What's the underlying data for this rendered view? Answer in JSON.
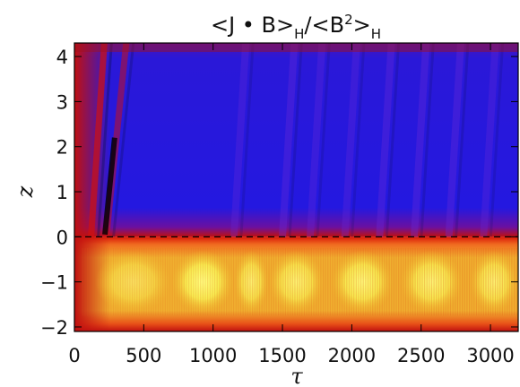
{
  "chart_data": {
    "type": "heatmap",
    "title": {
      "parts": [
        "<J • B>",
        "H",
        "/<B",
        "2",
        ">",
        "H"
      ]
    },
    "xlabel": "τ",
    "ylabel": "z",
    "xlim": [
      0,
      3200
    ],
    "ylim": [
      -2.1,
      4.3
    ],
    "x_ticks": [
      0,
      500,
      1000,
      1500,
      2000,
      2500,
      3000
    ],
    "x_tick_labels": [
      "0",
      "500",
      "1000",
      "1500",
      "2000",
      "2500",
      "3000"
    ],
    "y_ticks": [
      -2,
      -1,
      0,
      1,
      2,
      3,
      4
    ],
    "y_tick_labels": [
      "−2",
      "−1",
      "0",
      "1",
      "2",
      "3",
      "4"
    ],
    "reference_line": {
      "y": 0,
      "style": "dashed"
    },
    "colormap": [
      "#1a10d8",
      "#2820e0",
      "#000000",
      "#c01010",
      "#e02810",
      "#f06a20",
      "#f0c020",
      "#f0f070"
    ],
    "regions": [
      {
        "name": "upper",
        "z_range": [
          0,
          4.3
        ],
        "dominant": "negative",
        "color": "#2818e0"
      },
      {
        "name": "lower",
        "z_range": [
          -2.1,
          0
        ],
        "dominant": "positive",
        "color": "#f0e030"
      }
    ],
    "positive_bursts": [
      {
        "x_range": [
          150,
          700
        ],
        "level": 0.6
      },
      {
        "x_range": [
          700,
          1150
        ],
        "level": 1.0
      },
      {
        "x_range": [
          1150,
          1400
        ],
        "level": 0.8
      },
      {
        "x_range": [
          1400,
          1800
        ],
        "level": 0.85
      },
      {
        "x_range": [
          1850,
          2300
        ],
        "level": 0.95
      },
      {
        "x_range": [
          2350,
          2800
        ],
        "level": 0.9
      },
      {
        "x_range": [
          2850,
          3200
        ],
        "level": 0.85
      }
    ],
    "upward_streaks": [
      {
        "x_start": 120,
        "slope": 0.045,
        "strength": 0.7
      },
      {
        "x_start": 230,
        "slope": 0.03,
        "strength": 0.5
      },
      {
        "x_start": 1150,
        "slope": 0.05,
        "strength": 0.3
      },
      {
        "x_start": 1500,
        "slope": 0.05,
        "strength": 0.35
      },
      {
        "x_start": 1700,
        "slope": 0.05,
        "strength": 0.3
      },
      {
        "x_start": 1950,
        "slope": 0.05,
        "strength": 0.3
      },
      {
        "x_start": 2200,
        "slope": 0.05,
        "strength": 0.35
      },
      {
        "x_start": 2450,
        "slope": 0.05,
        "strength": 0.35
      },
      {
        "x_start": 2700,
        "slope": 0.05,
        "strength": 0.35
      },
      {
        "x_start": 2950,
        "slope": 0.05,
        "strength": 0.3
      }
    ]
  }
}
